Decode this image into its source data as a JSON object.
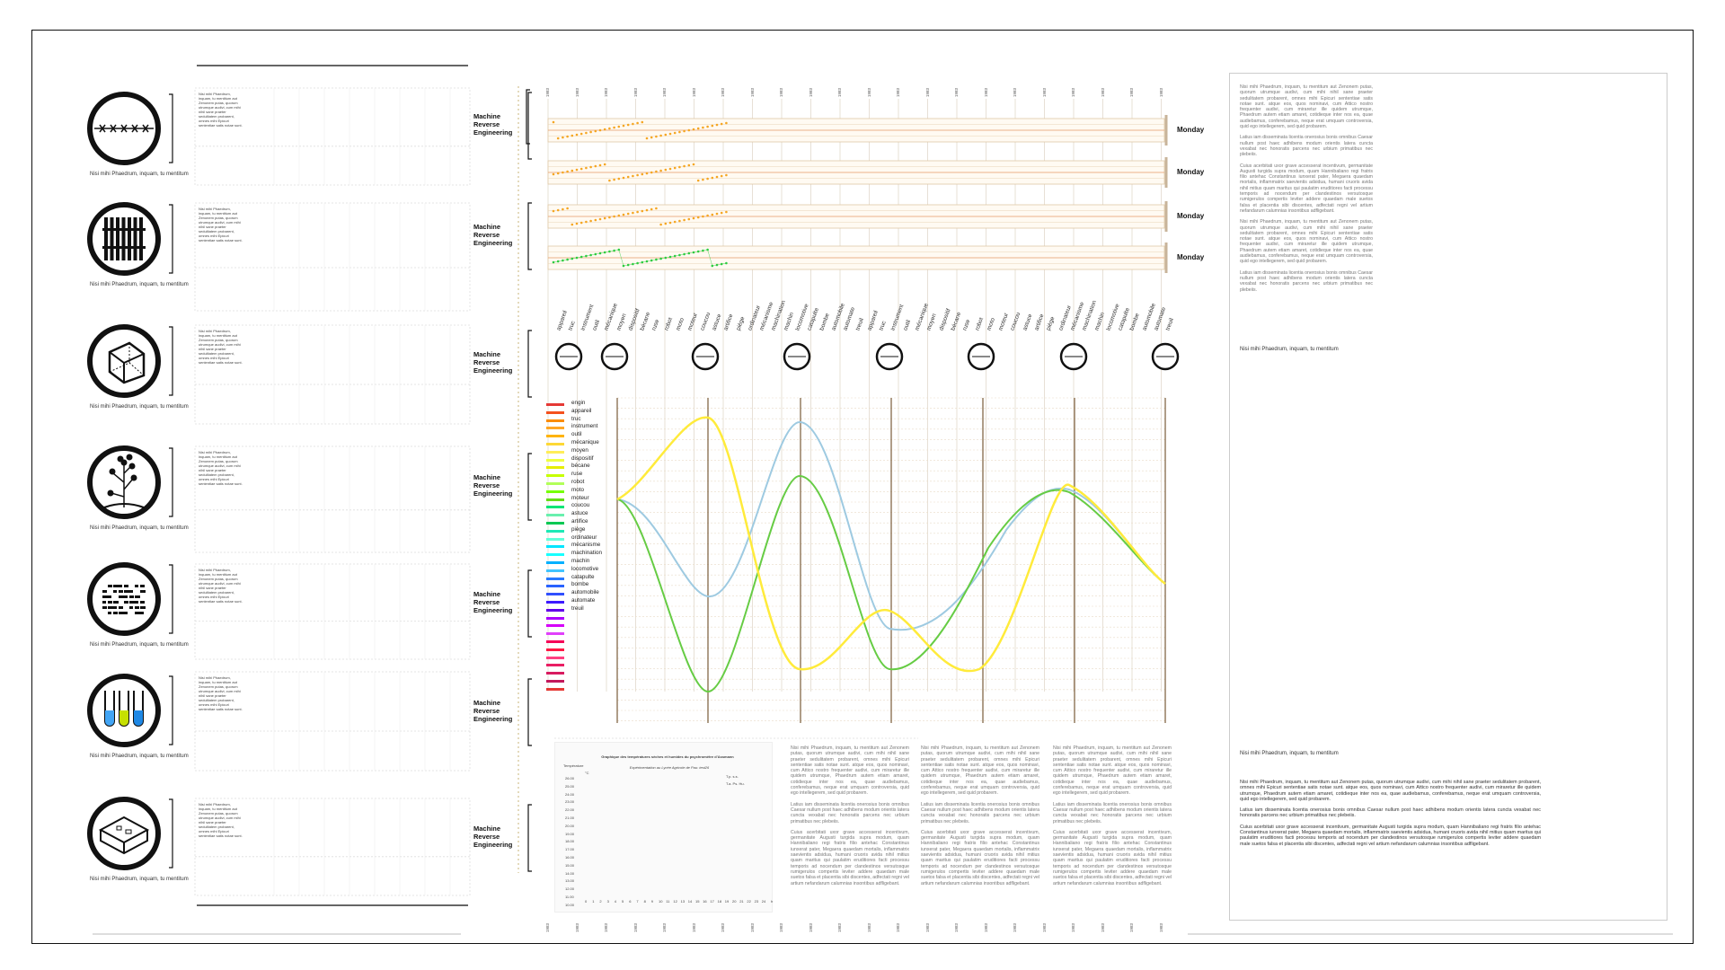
{
  "caption_text": "Nisi mihi Phaedrum, inquam, tu mentitum",
  "panel_label": "Machine Reverse Engineering",
  "day_label": "Monday",
  "year_label": "1983",
  "icons": [
    {
      "name": "barbed-wire-icon"
    },
    {
      "name": "fence-icon"
    },
    {
      "name": "cube-icon"
    },
    {
      "name": "plant-icon"
    },
    {
      "name": "text-collage-icon"
    },
    {
      "name": "test-tubes-icon"
    },
    {
      "name": "room-box-icon"
    }
  ],
  "hyphen_words": [
    "appareil",
    "truc",
    "instrument",
    "outil",
    "mécanique",
    "moyen",
    "dispositif",
    "bécane",
    "ruse",
    "robot",
    "moto",
    "moteur",
    "coucou",
    "astuce",
    "artifice",
    "piège",
    "ordinateur",
    "mécanisme",
    "machination",
    "machin",
    "locomotive",
    "catapulte",
    "bombe",
    "automobile",
    "automate",
    "treuil",
    "appareil",
    "truc",
    "instrument",
    "outil",
    "mécanique",
    "moyen",
    "dispositif",
    "bécane",
    "ruse",
    "robot",
    "moto",
    "moteur",
    "coucou",
    "astuce",
    "artifice",
    "piège",
    "ordinateur",
    "mécanisme",
    "machination",
    "machin",
    "locomotive",
    "catapulte",
    "bombe",
    "automobile",
    "automate",
    "treuil"
  ],
  "legend": [
    {
      "label": "engin",
      "color": "#e53935"
    },
    {
      "label": "appareil",
      "color": "#f4511e"
    },
    {
      "label": "truc",
      "color": "#fb8c00"
    },
    {
      "label": "instrument",
      "color": "#ffa726"
    },
    {
      "label": "outil",
      "color": "#ffb300"
    },
    {
      "label": "mécanique",
      "color": "#fdd835"
    },
    {
      "label": "moyen",
      "color": "#ffee58"
    },
    {
      "label": "dispositif",
      "color": "#eeff41"
    },
    {
      "label": "bécane",
      "color": "#e6ee00"
    },
    {
      "label": "ruse",
      "color": "#c6ff00"
    },
    {
      "label": "robot",
      "color": "#b2ff59"
    },
    {
      "label": "moto",
      "color": "#76ff03"
    },
    {
      "label": "moteur",
      "color": "#64dd17"
    },
    {
      "label": "coucou",
      "color": "#00e676"
    },
    {
      "label": "astuce",
      "color": "#69f0ae"
    },
    {
      "label": "artifice",
      "color": "#00c853"
    },
    {
      "label": "piège",
      "color": "#1de9b6"
    },
    {
      "label": "ordinateur",
      "color": "#64ffda"
    },
    {
      "label": "mécanisme",
      "color": "#00e5ff"
    },
    {
      "label": "machination",
      "color": "#18ffff"
    },
    {
      "label": "machin",
      "color": "#00b0ff"
    },
    {
      "label": "locomotive",
      "color": "#40c4ff"
    },
    {
      "label": "catapulte",
      "color": "#2979ff"
    },
    {
      "label": "bombe",
      "color": "#2962ff"
    },
    {
      "label": "automobile",
      "color": "#304ffe"
    },
    {
      "label": "automate",
      "color": "#3d1aff"
    },
    {
      "label": "treuil",
      "color": "#6200ea"
    },
    {
      "label": "",
      "color": "#aa00ff"
    },
    {
      "label": "",
      "color": "#d500f9"
    },
    {
      "label": "",
      "color": "#e040fb"
    },
    {
      "label": "",
      "color": "#f50057"
    },
    {
      "label": "",
      "color": "#ff1744"
    },
    {
      "label": "",
      "color": "#ff4081"
    },
    {
      "label": "",
      "color": "#e91e63"
    },
    {
      "label": "",
      "color": "#d81b60"
    },
    {
      "label": "",
      "color": "#c2185b"
    },
    {
      "label": "",
      "color": "#e53935"
    }
  ],
  "lorem_short": "Nisi mihi Phaedrum, inquam, tu mentitum aut Zenonem putas, quorum utrumque audivi, cum mihi nihil sane praeter sedulitatem probarent, omnes mihi Epicuri sententiae satis notae sunt. atque eos, quos nominavi, cum Attico nostro frequenter audivi, cum miraretur ille quidem utrumque, Phaedrum autem etiam amaret, cotidieque inter nos ea, quae audiebamus, conferebamus, neque erat umquam controversia, quid ego intellegerem, sed quid probarem.",
  "lorem_mid": "Latius iam disseminata licentia onerosius bonis omnibus Caesar nullum post haec adhibens modum orientis latera cuncta vexabat nec honoratis parcens nec urbium primatibus nec plebeiis.",
  "lorem_long": "Cuius acerbitati uxor grave accesserat incentivum, germanitate Augusti turgida supra modum, quam Hannibaliano regi fratris filio antehac Constantinus iunxerat pater, Megaera quaedam mortalis, inflammatrix saevientis adsidua, humani cruoris avida nihil mitius quam maritus qui paulatim eruditiores facti processu temporis ad nocendum per clandestinos versutosque rumigerulos compertis leviter addere quaedam male suetos falsa et placentia sibi discentes, adfectati regni vel artium nefandarum calumnias insontibus adfligebant.",
  "small_notes": "Nisi mihi Phaedrum, inquam, tu mentitum aut Zenonem putas, quorum utrumque audivi, cum mihi nihil sane praeter sedulitatem probarent, omnes mihi Epicuri sententiae satis notae sunt.",
  "temp_chart": {
    "title": "Graphique des températures sèches et humides du psychromètre d'Assmann",
    "subtitle": "Expérimentation au Lycée Agricole de Pau: test26",
    "ylabel": "Température",
    "unit": "°C",
    "legend": [
      "T.p. s.s.",
      "T.a. Ps. Hu."
    ],
    "yticks": [
      "26.00",
      "25.00",
      "24.00",
      "23.00",
      "22.00",
      "21.00",
      "20.00",
      "19.00",
      "18.00",
      "17.00",
      "16.00",
      "15.00",
      "14.00",
      "13.00",
      "12.00",
      "11.00",
      "10.00"
    ],
    "xticks": [
      "0",
      "1",
      "2",
      "3",
      "4",
      "5",
      "6",
      "7",
      "8",
      "9",
      "10",
      "11",
      "12",
      "13",
      "14",
      "15",
      "16",
      "17",
      "18",
      "19",
      "20",
      "21",
      "22",
      "23",
      "24"
    ],
    "xunit": "h"
  }
}
